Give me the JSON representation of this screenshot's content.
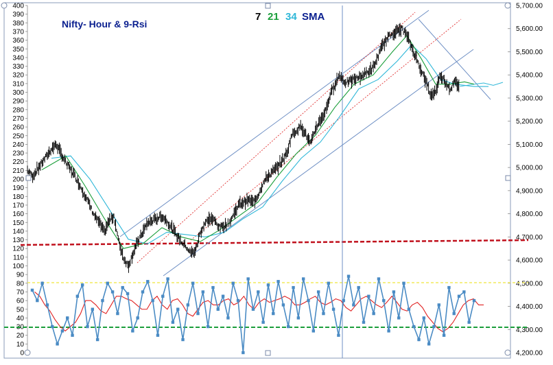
{
  "chart_data": {
    "type": "line",
    "title": "Nifty- Hour & 9-Rsi",
    "legend": [
      {
        "label": "7",
        "color": "#000000"
      },
      {
        "label": "21",
        "color": "#1a9e3a"
      },
      {
        "label": "34",
        "color": "#2fb7d8"
      },
      {
        "label": "SMA",
        "color": "#0a1f8f"
      }
    ],
    "legend_placement": "top-center",
    "left_axis": {
      "ylim": [
        0,
        400
      ],
      "ticks": [
        "0",
        "10",
        "20",
        "30",
        "40",
        "50",
        "60",
        "70",
        "80",
        "90",
        "100",
        "110",
        "120",
        "130",
        "140",
        "150",
        "160",
        "170",
        "180",
        "190",
        "200",
        "210",
        "220",
        "230",
        "240",
        "250",
        "260",
        "270",
        "280",
        "290",
        "300",
        "310",
        "320",
        "330",
        "340",
        "350",
        "360",
        "370",
        "380",
        "390",
        "400"
      ]
    },
    "right_axis": {
      "ylim": [
        4200,
        5700
      ],
      "ticks": [
        "4,200.00",
        "4,300.00",
        "4,400.00",
        "4,500.00",
        "4,600.00",
        "4,700.00",
        "4,800.00",
        "4,900.00",
        "5,000.00",
        "5,100.00",
        "5,200.00",
        "5,300.00",
        "5,400.00",
        "5,500.00",
        "5,600.00",
        "5,700.00"
      ]
    },
    "x_range": [
      0,
      100
    ],
    "grid": false,
    "price_path": [
      [
        0,
        4990
      ],
      [
        1,
        4960
      ],
      [
        3,
        5020
      ],
      [
        5,
        5080
      ],
      [
        6,
        5100
      ],
      [
        8,
        5020
      ],
      [
        10,
        4960
      ],
      [
        12,
        4880
      ],
      [
        14,
        4790
      ],
      [
        15,
        4760
      ],
      [
        16,
        4720
      ],
      [
        17,
        4770
      ],
      [
        18,
        4790
      ],
      [
        19,
        4680
      ],
      [
        20,
        4610
      ],
      [
        21,
        4575
      ],
      [
        22,
        4630
      ],
      [
        23,
        4680
      ],
      [
        24,
        4720
      ],
      [
        25,
        4760
      ],
      [
        26,
        4770
      ],
      [
        27,
        4780
      ],
      [
        28,
        4790
      ],
      [
        29,
        4770
      ],
      [
        30,
        4740
      ],
      [
        31,
        4710
      ],
      [
        32,
        4680
      ],
      [
        33,
        4660
      ],
      [
        34,
        4630
      ],
      [
        35,
        4640
      ],
      [
        36,
        4720
      ],
      [
        37,
        4760
      ],
      [
        38,
        4780
      ],
      [
        39,
        4770
      ],
      [
        40,
        4740
      ],
      [
        42,
        4760
      ],
      [
        44,
        4840
      ],
      [
        46,
        4860
      ],
      [
        47,
        4850
      ],
      [
        48,
        4880
      ],
      [
        49,
        4930
      ],
      [
        50,
        4960
      ],
      [
        52,
        5000
      ],
      [
        54,
        5060
      ],
      [
        55,
        5140
      ],
      [
        57,
        5180
      ],
      [
        58,
        5140
      ],
      [
        59,
        5100
      ],
      [
        60,
        5170
      ],
      [
        62,
        5240
      ],
      [
        63,
        5310
      ],
      [
        64,
        5360
      ],
      [
        65,
        5400
      ],
      [
        66,
        5370
      ],
      [
        67,
        5370
      ],
      [
        68,
        5380
      ],
      [
        70,
        5400
      ],
      [
        72,
        5430
      ],
      [
        73,
        5480
      ],
      [
        74,
        5530
      ],
      [
        75,
        5560
      ],
      [
        76,
        5580
      ],
      [
        77,
        5590
      ],
      [
        78,
        5600
      ],
      [
        79,
        5570
      ],
      [
        80,
        5520
      ],
      [
        81,
        5470
      ],
      [
        82,
        5420
      ],
      [
        83,
        5370
      ],
      [
        84,
        5310
      ],
      [
        85,
        5330
      ],
      [
        86,
        5400
      ],
      [
        87,
        5370
      ],
      [
        88,
        5340
      ],
      [
        89,
        5370
      ],
      [
        90,
        5350
      ]
    ],
    "sma_21_path": [
      [
        3,
        4990
      ],
      [
        8,
        5050
      ],
      [
        12,
        4920
      ],
      [
        16,
        4780
      ],
      [
        20,
        4650
      ],
      [
        24,
        4670
      ],
      [
        28,
        4740
      ],
      [
        32,
        4700
      ],
      [
        36,
        4680
      ],
      [
        40,
        4730
      ],
      [
        44,
        4790
      ],
      [
        48,
        4850
      ],
      [
        52,
        4960
      ],
      [
        56,
        5060
      ],
      [
        60,
        5140
      ],
      [
        64,
        5260
      ],
      [
        68,
        5360
      ],
      [
        72,
        5400
      ],
      [
        76,
        5500
      ],
      [
        79,
        5570
      ],
      [
        82,
        5470
      ],
      [
        85,
        5360
      ],
      [
        88,
        5360
      ],
      [
        91,
        5370
      ],
      [
        93,
        5360
      ]
    ],
    "sma_34_path": [
      [
        5,
        5040
      ],
      [
        9,
        5050
      ],
      [
        13,
        4950
      ],
      [
        17,
        4820
      ],
      [
        21,
        4690
      ],
      [
        25,
        4670
      ],
      [
        29,
        4720
      ],
      [
        33,
        4710
      ],
      [
        37,
        4700
      ],
      [
        41,
        4720
      ],
      [
        45,
        4780
      ],
      [
        49,
        4830
      ],
      [
        53,
        4940
      ],
      [
        57,
        5040
      ],
      [
        61,
        5110
      ],
      [
        65,
        5220
      ],
      [
        69,
        5340
      ],
      [
        73,
        5380
      ],
      [
        77,
        5460
      ],
      [
        80,
        5530
      ],
      [
        83,
        5470
      ],
      [
        86,
        5380
      ],
      [
        89,
        5360
      ],
      [
        93,
        5350
      ],
      [
        96,
        5350
      ]
    ],
    "rsi": [
      72,
      60,
      80,
      55,
      30,
      10,
      25,
      40,
      20,
      65,
      78,
      30,
      50,
      15,
      60,
      80,
      70,
      45,
      75,
      68,
      25,
      40,
      70,
      82,
      60,
      20,
      65,
      85,
      35,
      50,
      15,
      55,
      80,
      45,
      70,
      30,
      75,
      50,
      65,
      40,
      80,
      60,
      0,
      85,
      50,
      70,
      35,
      78,
      45,
      82,
      55,
      30,
      75,
      40,
      85,
      60,
      25,
      70,
      45,
      80,
      50,
      20,
      60,
      88,
      55,
      75,
      35,
      65,
      45,
      85,
      60,
      25,
      70,
      40,
      80,
      50,
      30,
      15,
      40,
      10,
      30,
      55,
      20,
      75,
      45,
      65,
      70,
      35,
      60
    ],
    "rsi_signal": [
      70,
      65,
      55,
      48,
      38,
      30,
      25,
      30,
      35,
      45,
      60,
      60,
      55,
      48,
      45,
      55,
      65,
      65,
      62,
      60,
      55,
      50,
      50,
      60,
      65,
      55,
      50,
      60,
      62,
      55,
      45,
      42,
      50,
      58,
      60,
      55,
      55,
      60,
      62,
      55,
      58,
      65,
      55,
      50,
      58,
      62,
      58,
      60,
      62,
      65,
      62,
      55,
      55,
      58,
      62,
      65,
      58,
      55,
      58,
      62,
      60,
      52,
      48,
      55,
      62,
      65,
      60,
      55,
      52,
      58,
      65,
      58,
      50,
      48,
      55,
      58,
      52,
      42,
      35,
      28,
      24,
      28,
      35,
      45,
      55,
      60,
      62,
      55,
      55
    ]
  }
}
